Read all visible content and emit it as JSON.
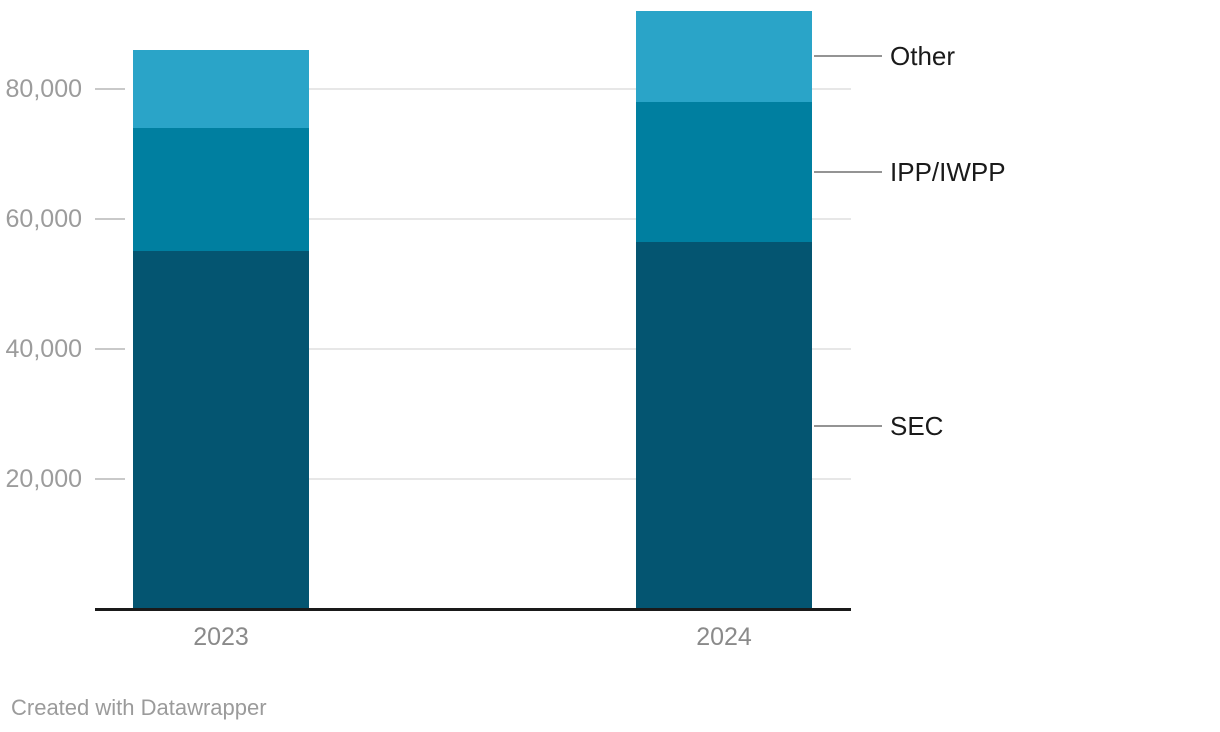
{
  "chart_data": {
    "type": "bar",
    "stacked": true,
    "categories": [
      "2023",
      "2024"
    ],
    "series": [
      {
        "name": "SEC",
        "color": "#045571",
        "values": [
          55000,
          56400
        ]
      },
      {
        "name": "IPP/IWPP",
        "color": "#007fa0",
        "values": [
          19000,
          21600
        ]
      },
      {
        "name": "Other",
        "color": "#2aa4c8",
        "values": [
          12000,
          14000
        ]
      }
    ],
    "totals": [
      86000,
      92000
    ],
    "yticks": [
      20000,
      40000,
      60000,
      80000
    ],
    "ytick_labels": [
      "20,000",
      "40,000",
      "60,000",
      "80,000"
    ],
    "ylim": [
      0,
      92000
    ],
    "grid": true,
    "legend_position": "right-inline-labels",
    "title": "",
    "xlabel": "",
    "ylabel": ""
  },
  "colors": {
    "sec": "#045571",
    "ipp_iwpp": "#007fa0",
    "other": "#2aa4c8",
    "axis": "#1a1a1a",
    "gridline": "#e7e7e7",
    "tick_text": "#9c9c9c",
    "category_text": "#8a8a8a",
    "label_text": "#1a1a1a",
    "credit_text": "#9b9b9b"
  },
  "footer": {
    "credit": "Created with Datawrapper"
  }
}
